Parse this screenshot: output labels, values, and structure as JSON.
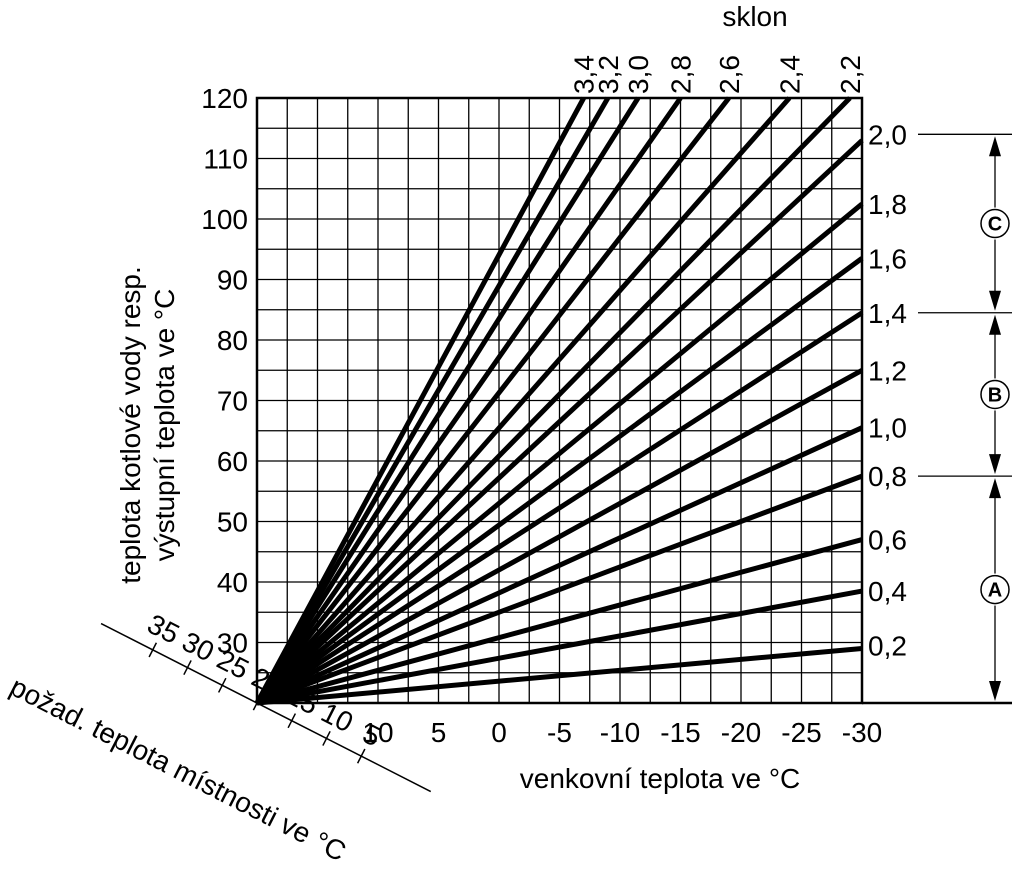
{
  "chart_data": {
    "type": "line",
    "title": "",
    "ylabel_line1": "teplota kotlové vody resp.",
    "ylabel_line2": "výstupní teplota ve °C",
    "xlabel": "venkovní teplota ve °C",
    "room_axis_label": "požad. teplota místnosti ve °C",
    "slope_header": "sklon",
    "x_tick_labels": [
      "10",
      "5",
      "0",
      "-5",
      "-10",
      "-15",
      "-20",
      "-25",
      "-30"
    ],
    "y_tick_labels": [
      "30",
      "40",
      "50",
      "60",
      "70",
      "80",
      "90",
      "100",
      "110",
      "120"
    ],
    "room_tick_labels": [
      "35",
      "30",
      "25",
      "20",
      "15",
      "10",
      "5"
    ],
    "xlim": [
      20,
      -30
    ],
    "ylim": [
      20,
      120
    ],
    "grid": true,
    "series": [
      {
        "label": "0,2",
        "x": [
          20,
          -30
        ],
        "y": [
          20,
          29
        ]
      },
      {
        "label": "0,4",
        "x": [
          20,
          -30
        ],
        "y": [
          20,
          38.5
        ]
      },
      {
        "label": "0,6",
        "x": [
          20,
          -30
        ],
        "y": [
          20,
          47
        ]
      },
      {
        "label": "0,8",
        "x": [
          20,
          -30
        ],
        "y": [
          20,
          57.5
        ]
      },
      {
        "label": "1,0",
        "x": [
          20,
          -30
        ],
        "y": [
          20,
          65.5
        ]
      },
      {
        "label": "1,2",
        "x": [
          20,
          -30
        ],
        "y": [
          20,
          75
        ]
      },
      {
        "label": "1,4",
        "x": [
          20,
          -30
        ],
        "y": [
          20,
          84.5
        ]
      },
      {
        "label": "1,6",
        "x": [
          20,
          -30
        ],
        "y": [
          20,
          93.5
        ]
      },
      {
        "label": "1,8",
        "x": [
          20,
          -30
        ],
        "y": [
          20,
          102.5
        ]
      },
      {
        "label": "2,0",
        "x": [
          20,
          -30
        ],
        "y": [
          20,
          113
        ]
      },
      {
        "label": "2,2",
        "x": [
          20,
          -29
        ],
        "y": [
          20,
          120
        ]
      },
      {
        "label": "2,4",
        "x": [
          20,
          -24
        ],
        "y": [
          20,
          120
        ]
      },
      {
        "label": "2,6",
        "x": [
          20,
          -19
        ],
        "y": [
          20,
          120
        ]
      },
      {
        "label": "2,8",
        "x": [
          20,
          -15
        ],
        "y": [
          20,
          120
        ]
      },
      {
        "label": "3,0",
        "x": [
          20,
          -11.5
        ],
        "y": [
          20,
          120
        ]
      },
      {
        "label": "3,2",
        "x": [
          20,
          -9
        ],
        "y": [
          20,
          120
        ]
      },
      {
        "label": "3,4",
        "x": [
          20,
          -7
        ],
        "y": [
          20,
          120
        ]
      }
    ],
    "right_side_labels": [
      "2,0",
      "1,8",
      "1,6",
      "1,4",
      "1,2",
      "1,0",
      "0,8",
      "0,6",
      "0,4",
      "0,2"
    ],
    "top_labels": [
      "3,4",
      "3,2",
      "3,0",
      "2,8",
      "2,6",
      "2,4",
      "2,2"
    ],
    "zones": [
      {
        "label": "C",
        "from_slope": "2,0",
        "to_slope": "1,4"
      },
      {
        "label": "B",
        "from_slope": "1,4",
        "to_slope": "0,8"
      },
      {
        "label": "A",
        "from_slope": "0,8",
        "to_slope": "0"
      }
    ]
  }
}
